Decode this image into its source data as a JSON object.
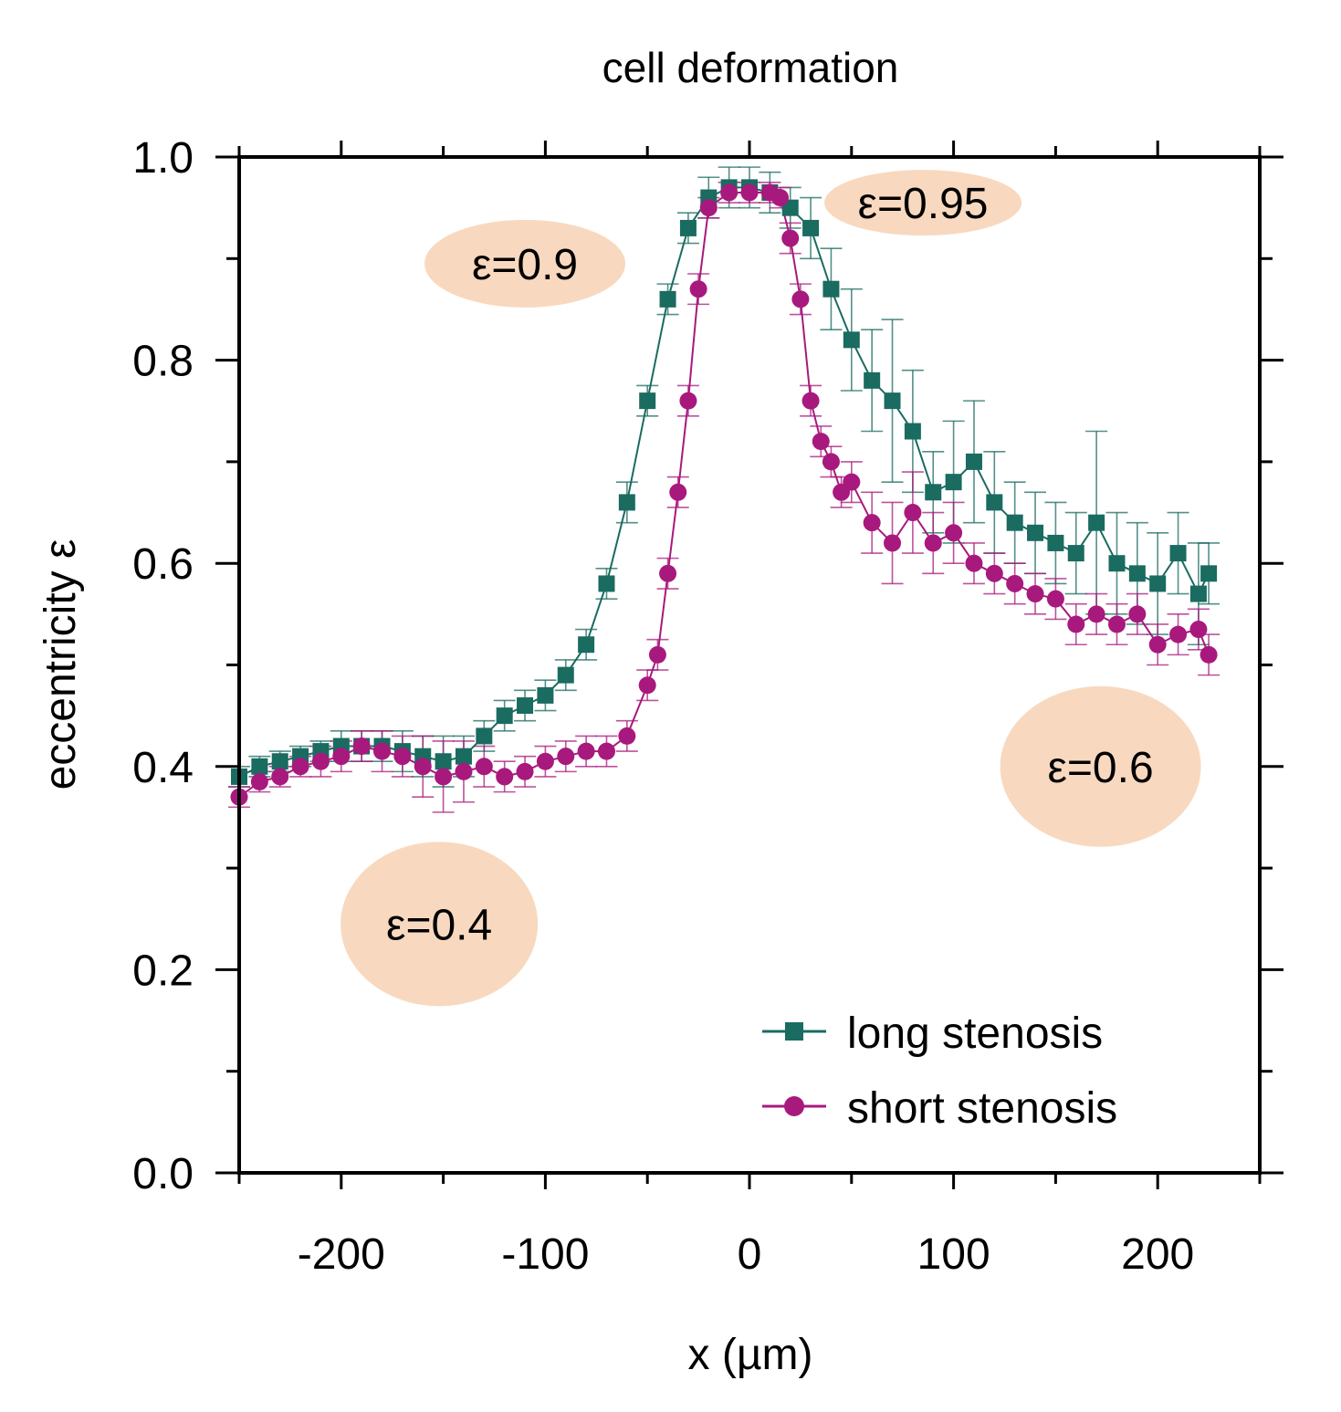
{
  "chart_data": {
    "type": "scatter",
    "title": "cell deformation",
    "xlabel": "x (µm)",
    "ylabel": "eccentricity ε",
    "xlim": [
      -250,
      250
    ],
    "ylim": [
      0.0,
      1.0
    ],
    "x_ticks": [
      -200,
      -100,
      0,
      100,
      200
    ],
    "x_tick_labels": [
      "-200",
      "-100",
      "0",
      "100",
      "200"
    ],
    "y_ticks": [
      0.0,
      0.2,
      0.4,
      0.6,
      0.8,
      1.0
    ],
    "y_tick_labels": [
      "0.0",
      "0.2",
      "0.4",
      "0.6",
      "0.8",
      "1.0"
    ],
    "legend_position": "bottom-right",
    "series": [
      {
        "name": "long stenosis",
        "marker": "square",
        "color": "#1a6b60",
        "x": [
          -250,
          -240,
          -230,
          -220,
          -210,
          -200,
          -190,
          -180,
          -170,
          -160,
          -150,
          -140,
          -130,
          -120,
          -110,
          -100,
          -90,
          -80,
          -70,
          -60,
          -50,
          -40,
          -30,
          -20,
          -10,
          0,
          10,
          20,
          30,
          40,
          50,
          60,
          70,
          80,
          90,
          100,
          110,
          120,
          130,
          140,
          150,
          160,
          170,
          180,
          190,
          200,
          210,
          220,
          225
        ],
        "y": [
          0.39,
          0.4,
          0.405,
          0.41,
          0.415,
          0.42,
          0.42,
          0.42,
          0.415,
          0.41,
          0.405,
          0.41,
          0.43,
          0.45,
          0.46,
          0.47,
          0.49,
          0.52,
          0.58,
          0.66,
          0.76,
          0.86,
          0.93,
          0.96,
          0.97,
          0.97,
          0.965,
          0.95,
          0.93,
          0.87,
          0.82,
          0.78,
          0.76,
          0.73,
          0.67,
          0.68,
          0.7,
          0.66,
          0.64,
          0.63,
          0.62,
          0.61,
          0.64,
          0.6,
          0.59,
          0.58,
          0.61,
          0.57,
          0.59
        ],
        "yerr": [
          0.01,
          0.01,
          0.01,
          0.01,
          0.01,
          0.015,
          0.015,
          0.015,
          0.02,
          0.02,
          0.025,
          0.02,
          0.015,
          0.015,
          0.015,
          0.015,
          0.015,
          0.015,
          0.015,
          0.02,
          0.015,
          0.015,
          0.015,
          0.02,
          0.02,
          0.02,
          0.02,
          0.02,
          0.03,
          0.04,
          0.05,
          0.05,
          0.08,
          0.06,
          0.04,
          0.06,
          0.06,
          0.05,
          0.04,
          0.04,
          0.04,
          0.04,
          0.09,
          0.05,
          0.05,
          0.05,
          0.04,
          0.05,
          0.03
        ]
      },
      {
        "name": "short stenosis",
        "marker": "circle",
        "color": "#a8197d",
        "x": [
          -250,
          -240,
          -230,
          -220,
          -210,
          -200,
          -190,
          -180,
          -170,
          -160,
          -150,
          -140,
          -130,
          -120,
          -110,
          -100,
          -90,
          -80,
          -70,
          -60,
          -50,
          -45,
          -40,
          -35,
          -30,
          -25,
          -20,
          -10,
          0,
          10,
          15,
          20,
          25,
          30,
          35,
          40,
          45,
          50,
          60,
          70,
          80,
          90,
          100,
          110,
          120,
          130,
          140,
          150,
          160,
          170,
          180,
          190,
          200,
          210,
          220,
          225
        ],
        "y": [
          0.37,
          0.385,
          0.39,
          0.4,
          0.405,
          0.41,
          0.42,
          0.415,
          0.41,
          0.4,
          0.39,
          0.395,
          0.4,
          0.39,
          0.395,
          0.405,
          0.41,
          0.415,
          0.415,
          0.43,
          0.48,
          0.51,
          0.59,
          0.67,
          0.76,
          0.87,
          0.95,
          0.965,
          0.965,
          0.965,
          0.96,
          0.92,
          0.86,
          0.76,
          0.72,
          0.7,
          0.67,
          0.68,
          0.64,
          0.62,
          0.65,
          0.62,
          0.63,
          0.6,
          0.59,
          0.58,
          0.57,
          0.565,
          0.54,
          0.55,
          0.54,
          0.55,
          0.52,
          0.53,
          0.535,
          0.51
        ],
        "yerr": [
          0.01,
          0.01,
          0.01,
          0.01,
          0.015,
          0.015,
          0.015,
          0.02,
          0.02,
          0.03,
          0.035,
          0.03,
          0.02,
          0.015,
          0.015,
          0.015,
          0.015,
          0.015,
          0.015,
          0.015,
          0.015,
          0.015,
          0.015,
          0.015,
          0.015,
          0.015,
          0.01,
          0.01,
          0.01,
          0.01,
          0.01,
          0.015,
          0.015,
          0.015,
          0.015,
          0.015,
          0.015,
          0.02,
          0.03,
          0.04,
          0.04,
          0.03,
          0.03,
          0.02,
          0.02,
          0.02,
          0.02,
          0.02,
          0.02,
          0.02,
          0.02,
          0.02,
          0.02,
          0.02,
          0.02,
          0.02
        ]
      }
    ],
    "annotations": [
      {
        "text": "ε=0.9",
        "x": -110,
        "y": 0.895
      },
      {
        "text": "ε=0.95",
        "x": 85,
        "y": 0.955
      },
      {
        "text": "ε=0.4",
        "x": -152,
        "y": 0.245
      },
      {
        "text": "ε=0.6",
        "x": 172,
        "y": 0.4
      }
    ],
    "annotation_fill": "#f8d9bf"
  }
}
